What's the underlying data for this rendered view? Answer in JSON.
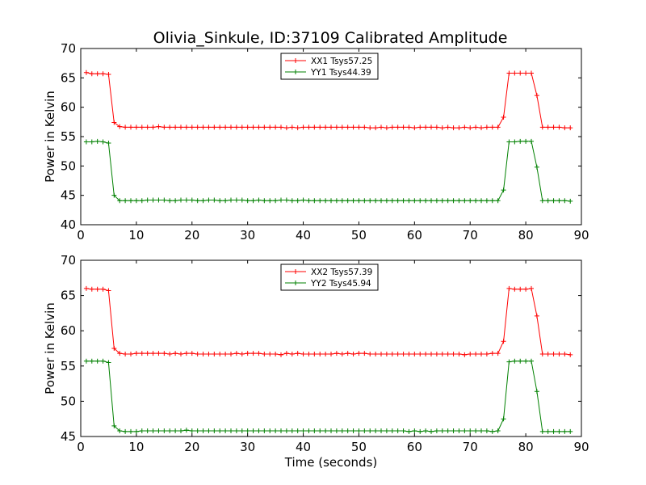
{
  "chart_data": [
    {
      "type": "line",
      "title": "Olivia_Sinkule, ID:37109 Calibrated Amplitude",
      "xlabel": "",
      "ylabel": "Power in Kelvin",
      "xlim": [
        0,
        90
      ],
      "ylim": [
        40,
        70
      ],
      "xticks": [
        0,
        10,
        20,
        30,
        40,
        50,
        60,
        70,
        80,
        90
      ],
      "yticks": [
        40,
        45,
        50,
        55,
        60,
        65,
        70
      ],
      "grid": false,
      "legend": "top-center",
      "x": [
        1,
        2,
        3,
        4,
        5,
        6,
        7,
        8,
        9,
        10,
        11,
        12,
        13,
        14,
        15,
        16,
        17,
        18,
        19,
        20,
        21,
        22,
        23,
        24,
        25,
        26,
        27,
        28,
        29,
        30,
        31,
        32,
        33,
        34,
        35,
        36,
        37,
        38,
        39,
        40,
        41,
        42,
        43,
        44,
        45,
        46,
        47,
        48,
        49,
        50,
        51,
        52,
        53,
        54,
        55,
        56,
        57,
        58,
        59,
        60,
        61,
        62,
        63,
        64,
        65,
        66,
        67,
        68,
        69,
        70,
        71,
        72,
        73,
        74,
        75,
        76,
        77,
        78,
        79,
        80,
        81,
        82,
        83,
        84,
        85,
        86,
        87,
        88
      ],
      "series": [
        {
          "name": "XX1 Tsys57.25",
          "color": "#ff0000",
          "values": [
            65.9,
            65.7,
            65.7,
            65.7,
            65.6,
            57.4,
            56.7,
            56.6,
            56.6,
            56.6,
            56.6,
            56.6,
            56.6,
            56.7,
            56.6,
            56.6,
            56.6,
            56.6,
            56.6,
            56.6,
            56.6,
            56.6,
            56.6,
            56.6,
            56.6,
            56.6,
            56.6,
            56.6,
            56.6,
            56.6,
            56.6,
            56.6,
            56.6,
            56.6,
            56.6,
            56.6,
            56.5,
            56.6,
            56.5,
            56.6,
            56.6,
            56.6,
            56.6,
            56.6,
            56.6,
            56.6,
            56.6,
            56.6,
            56.6,
            56.6,
            56.6,
            56.5,
            56.5,
            56.6,
            56.5,
            56.6,
            56.6,
            56.6,
            56.6,
            56.5,
            56.6,
            56.6,
            56.6,
            56.6,
            56.5,
            56.6,
            56.5,
            56.5,
            56.6,
            56.5,
            56.6,
            56.5,
            56.6,
            56.6,
            56.6,
            58.3,
            65.8,
            65.8,
            65.8,
            65.8,
            65.8,
            62.0,
            56.6,
            56.6,
            56.6,
            56.6,
            56.5,
            56.5
          ]
        },
        {
          "name": "YY1 Tsys44.39",
          "color": "#008000",
          "values": [
            54.1,
            54.1,
            54.2,
            54.1,
            53.9,
            45.0,
            44.1,
            44.1,
            44.1,
            44.1,
            44.1,
            44.2,
            44.2,
            44.2,
            44.2,
            44.1,
            44.1,
            44.2,
            44.2,
            44.2,
            44.1,
            44.1,
            44.2,
            44.2,
            44.1,
            44.1,
            44.2,
            44.2,
            44.2,
            44.1,
            44.1,
            44.2,
            44.1,
            44.1,
            44.1,
            44.2,
            44.2,
            44.1,
            44.1,
            44.2,
            44.1,
            44.1,
            44.1,
            44.1,
            44.1,
            44.1,
            44.1,
            44.1,
            44.1,
            44.1,
            44.1,
            44.1,
            44.1,
            44.1,
            44.1,
            44.1,
            44.1,
            44.1,
            44.1,
            44.1,
            44.1,
            44.1,
            44.1,
            44.1,
            44.1,
            44.1,
            44.1,
            44.1,
            44.1,
            44.1,
            44.1,
            44.1,
            44.1,
            44.1,
            44.1,
            45.9,
            54.1,
            54.1,
            54.2,
            54.2,
            54.2,
            49.8,
            44.1,
            44.1,
            44.1,
            44.1,
            44.1,
            44.0
          ]
        }
      ]
    },
    {
      "type": "line",
      "title": "",
      "xlabel": "Time (seconds)",
      "ylabel": "Power in Kelvin",
      "xlim": [
        0,
        90
      ],
      "ylim": [
        45,
        70
      ],
      "xticks": [
        0,
        10,
        20,
        30,
        40,
        50,
        60,
        70,
        80,
        90
      ],
      "yticks": [
        45,
        50,
        55,
        60,
        65,
        70
      ],
      "grid": false,
      "legend": "top-center",
      "x": [
        1,
        2,
        3,
        4,
        5,
        6,
        7,
        8,
        9,
        10,
        11,
        12,
        13,
        14,
        15,
        16,
        17,
        18,
        19,
        20,
        21,
        22,
        23,
        24,
        25,
        26,
        27,
        28,
        29,
        30,
        31,
        32,
        33,
        34,
        35,
        36,
        37,
        38,
        39,
        40,
        41,
        42,
        43,
        44,
        45,
        46,
        47,
        48,
        49,
        50,
        51,
        52,
        53,
        54,
        55,
        56,
        57,
        58,
        59,
        60,
        61,
        62,
        63,
        64,
        65,
        66,
        67,
        68,
        69,
        70,
        71,
        72,
        73,
        74,
        75,
        76,
        77,
        78,
        79,
        80,
        81,
        82,
        83,
        84,
        85,
        86,
        87,
        88
      ],
      "series": [
        {
          "name": "XX2 Tsys57.39",
          "color": "#ff0000",
          "values": [
            66.0,
            65.9,
            65.9,
            65.9,
            65.7,
            57.5,
            56.8,
            56.7,
            56.7,
            56.8,
            56.8,
            56.8,
            56.8,
            56.8,
            56.8,
            56.7,
            56.8,
            56.7,
            56.8,
            56.8,
            56.7,
            56.7,
            56.7,
            56.7,
            56.7,
            56.7,
            56.7,
            56.8,
            56.7,
            56.8,
            56.8,
            56.8,
            56.7,
            56.7,
            56.7,
            56.6,
            56.8,
            56.7,
            56.8,
            56.7,
            56.7,
            56.7,
            56.7,
            56.7,
            56.7,
            56.8,
            56.7,
            56.8,
            56.7,
            56.8,
            56.8,
            56.7,
            56.7,
            56.7,
            56.7,
            56.7,
            56.7,
            56.7,
            56.7,
            56.7,
            56.7,
            56.7,
            56.7,
            56.7,
            56.7,
            56.7,
            56.7,
            56.7,
            56.6,
            56.7,
            56.7,
            56.7,
            56.7,
            56.8,
            56.8,
            58.5,
            66.0,
            65.9,
            65.9,
            65.9,
            66.0,
            62.1,
            56.7,
            56.7,
            56.7,
            56.7,
            56.7,
            56.6
          ]
        },
        {
          "name": "YY2 Tsys45.94",
          "color": "#008000",
          "values": [
            55.7,
            55.7,
            55.7,
            55.7,
            55.5,
            46.5,
            45.8,
            45.7,
            45.7,
            45.7,
            45.8,
            45.8,
            45.8,
            45.8,
            45.8,
            45.8,
            45.8,
            45.8,
            45.9,
            45.8,
            45.8,
            45.8,
            45.8,
            45.8,
            45.8,
            45.8,
            45.8,
            45.8,
            45.8,
            45.8,
            45.8,
            45.8,
            45.8,
            45.8,
            45.8,
            45.8,
            45.8,
            45.8,
            45.8,
            45.8,
            45.8,
            45.8,
            45.8,
            45.8,
            45.8,
            45.8,
            45.8,
            45.8,
            45.8,
            45.8,
            45.8,
            45.8,
            45.8,
            45.8,
            45.8,
            45.8,
            45.8,
            45.8,
            45.7,
            45.8,
            45.7,
            45.8,
            45.7,
            45.8,
            45.8,
            45.8,
            45.8,
            45.8,
            45.8,
            45.8,
            45.8,
            45.8,
            45.8,
            45.7,
            45.8,
            47.5,
            55.6,
            55.7,
            55.7,
            55.7,
            55.7,
            51.4,
            45.7,
            45.7,
            45.7,
            45.7,
            45.7,
            45.7
          ]
        }
      ]
    }
  ]
}
